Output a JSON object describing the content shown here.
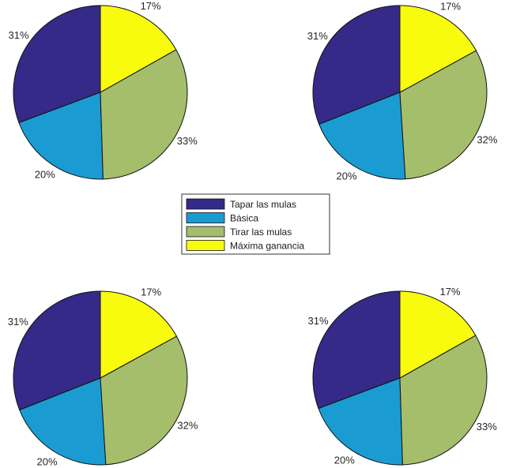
{
  "legend": {
    "entries": [
      "Tapar las mulas",
      "Básica",
      "Tirar las mulas",
      "Máxima ganancia"
    ],
    "placement": "center",
    "colors": [
      "#352a87",
      "#1a9cd2",
      "#a4be6c",
      "#f9fb0e"
    ]
  },
  "chart_data": [
    {
      "type": "pie",
      "categories": [
        "Tapar las mulas",
        "Básica",
        "Tirar las mulas",
        "Máxima ganancia"
      ],
      "values": [
        31,
        20,
        33,
        17
      ],
      "labels": [
        "31%",
        "20%",
        "33%",
        "17%"
      ]
    },
    {
      "type": "pie",
      "categories": [
        "Tapar las mulas",
        "Básica",
        "Tirar las mulas",
        "Máxima ganancia"
      ],
      "values": [
        31,
        20,
        32,
        17
      ],
      "labels": [
        "31%",
        "20%",
        "32%",
        "17%"
      ]
    },
    {
      "type": "pie",
      "categories": [
        "Tapar las mulas",
        "Básica",
        "Tirar las mulas",
        "Máxima ganancia"
      ],
      "values": [
        31,
        20,
        32,
        17
      ],
      "labels": [
        "31%",
        "20%",
        "32%",
        "17%"
      ]
    },
    {
      "type": "pie",
      "categories": [
        "Tapar las mulas",
        "Básica",
        "Tirar las mulas",
        "Máxima ganancia"
      ],
      "values": [
        31,
        20,
        33,
        17
      ],
      "labels": [
        "31%",
        "20%",
        "33%",
        "17%"
      ]
    }
  ]
}
